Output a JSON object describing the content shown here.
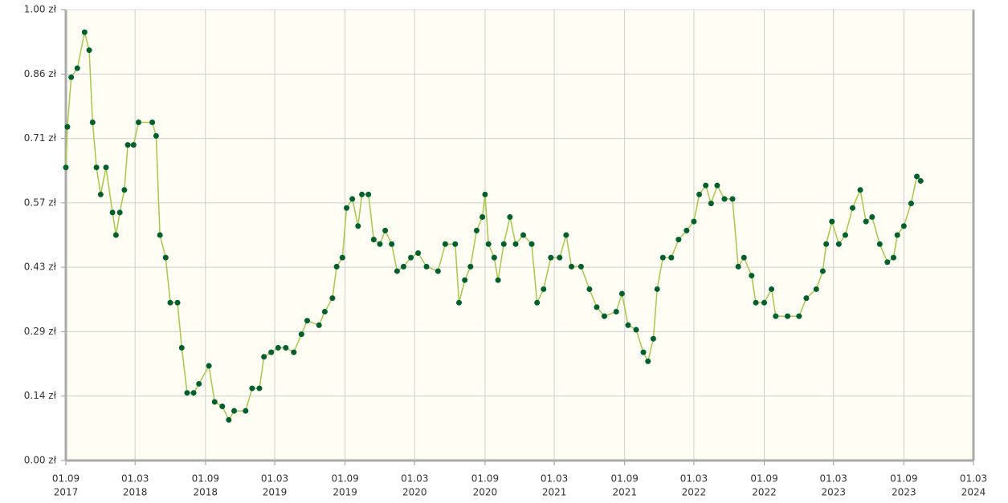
{
  "chart_data": {
    "type": "line",
    "x": [
      "2017-09-01",
      "2017-09-05",
      "2017-09-15",
      "2017-10-01",
      "2017-10-20",
      "2017-11-01",
      "2017-11-10",
      "2017-11-20",
      "2017-12-01",
      "2017-12-15",
      "2018-01-01",
      "2018-01-10",
      "2018-01-20",
      "2018-02-01",
      "2018-02-10",
      "2018-02-25",
      "2018-03-10",
      "2018-04-15",
      "2018-04-25",
      "2018-05-05",
      "2018-05-20",
      "2018-06-01",
      "2018-06-20",
      "2018-07-01",
      "2018-07-15",
      "2018-08-01",
      "2018-08-15",
      "2018-09-10",
      "2018-09-25",
      "2018-10-15",
      "2018-11-01",
      "2018-11-15",
      "2018-12-15",
      "2019-01-01",
      "2019-01-20",
      "2019-02-01",
      "2019-02-20",
      "2019-03-10",
      "2019-03-30",
      "2019-04-20",
      "2019-05-10",
      "2019-05-25",
      "2019-06-25",
      "2019-07-10",
      "2019-07-30",
      "2019-08-10",
      "2019-08-25",
      "2019-09-05",
      "2019-09-20",
      "2019-10-05",
      "2019-10-15",
      "2019-11-01",
      "2019-11-15",
      "2019-12-01",
      "2019-12-15",
      "2020-01-01",
      "2020-01-15",
      "2020-02-01",
      "2020-02-20",
      "2020-03-10",
      "2020-04-01",
      "2020-05-01",
      "2020-05-20",
      "2020-06-15",
      "2020-06-25",
      "2020-07-10",
      "2020-07-25",
      "2020-08-10",
      "2020-08-25",
      "2020-09-01",
      "2020-09-10",
      "2020-09-25",
      "2020-10-05",
      "2020-10-20",
      "2020-11-05",
      "2020-11-20",
      "2020-12-10",
      "2021-01-01",
      "2021-01-15",
      "2021-02-01",
      "2021-02-20",
      "2021-03-15",
      "2021-04-01",
      "2021-04-15",
      "2021-05-10",
      "2021-06-01",
      "2021-06-20",
      "2021-07-10",
      "2021-08-10",
      "2021-08-25",
      "2021-09-10",
      "2021-10-01",
      "2021-10-20",
      "2021-11-01",
      "2021-11-15",
      "2021-11-25",
      "2021-12-10",
      "2022-01-01",
      "2022-01-20",
      "2022-02-10",
      "2022-03-01",
      "2022-03-15",
      "2022-04-01",
      "2022-04-15",
      "2022-05-01",
      "2022-05-20",
      "2022-06-10",
      "2022-06-25",
      "2022-07-10",
      "2022-07-30",
      "2022-08-10",
      "2022-09-01",
      "2022-09-20",
      "2022-10-01",
      "2022-11-01",
      "2022-12-01",
      "2022-12-20",
      "2023-01-15",
      "2023-02-01",
      "2023-02-10",
      "2023-02-25",
      "2023-03-15",
      "2023-04-01",
      "2023-04-20",
      "2023-05-10",
      "2023-05-25",
      "2023-06-10",
      "2023-06-30",
      "2023-07-20",
      "2023-08-05",
      "2023-08-15",
      "2023-09-01",
      "2023-09-20",
      "2023-10-05",
      "2023-10-15"
    ],
    "values": [
      0.65,
      0.74,
      0.85,
      0.87,
      0.95,
      0.91,
      0.75,
      0.65,
      0.59,
      0.65,
      0.55,
      0.5,
      0.55,
      0.6,
      0.7,
      0.7,
      0.75,
      0.75,
      0.72,
      0.5,
      0.45,
      0.35,
      0.35,
      0.25,
      0.15,
      0.15,
      0.17,
      0.21,
      0.13,
      0.12,
      0.09,
      0.11,
      0.11,
      0.16,
      0.16,
      0.23,
      0.24,
      0.25,
      0.25,
      0.24,
      0.28,
      0.31,
      0.3,
      0.33,
      0.36,
      0.43,
      0.45,
      0.56,
      0.58,
      0.52,
      0.59,
      0.59,
      0.49,
      0.48,
      0.51,
      0.48,
      0.42,
      0.43,
      0.45,
      0.46,
      0.43,
      0.42,
      0.48,
      0.48,
      0.35,
      0.4,
      0.43,
      0.51,
      0.54,
      0.59,
      0.48,
      0.45,
      0.4,
      0.48,
      0.54,
      0.48,
      0.5,
      0.48,
      0.35,
      0.38,
      0.45,
      0.45,
      0.5,
      0.43,
      0.43,
      0.38,
      0.34,
      0.32,
      0.33,
      0.37,
      0.3,
      0.29,
      0.24,
      0.22,
      0.27,
      0.38,
      0.45,
      0.45,
      0.49,
      0.51,
      0.53,
      0.59,
      0.61,
      0.57,
      0.61,
      0.58,
      0.58,
      0.43,
      0.45,
      0.41,
      0.35,
      0.35,
      0.38,
      0.32,
      0.32,
      0.32,
      0.36,
      0.38,
      0.42,
      0.48,
      0.53,
      0.48,
      0.5,
      0.56,
      0.6,
      0.53,
      0.54,
      0.48,
      0.44,
      0.45,
      0.5,
      0.52,
      0.57,
      0.63,
      0.62
    ],
    "line_color": "#a8c84a",
    "marker_color": "#00602e",
    "xlim": [
      "2017-09-01",
      "2024-03-01"
    ],
    "xticks": [
      {
        "value": "2017-09-01",
        "label": [
          "01.09",
          "2017"
        ]
      },
      {
        "value": "2018-03-01",
        "label": [
          "01.03",
          "2018"
        ]
      },
      {
        "value": "2018-09-01",
        "label": [
          "01.09",
          "2018"
        ]
      },
      {
        "value": "2019-03-01",
        "label": [
          "01.03",
          "2019"
        ]
      },
      {
        "value": "2019-09-01",
        "label": [
          "01.09",
          "2019"
        ]
      },
      {
        "value": "2020-03-01",
        "label": [
          "01.03",
          "2020"
        ]
      },
      {
        "value": "2020-09-01",
        "label": [
          "01.09",
          "2020"
        ]
      },
      {
        "value": "2021-03-01",
        "label": [
          "01.03",
          "2021"
        ]
      },
      {
        "value": "2021-09-01",
        "label": [
          "01.09",
          "2021"
        ]
      },
      {
        "value": "2022-03-01",
        "label": [
          "01.03",
          "2022"
        ]
      },
      {
        "value": "2022-09-01",
        "label": [
          "01.09",
          "2022"
        ]
      },
      {
        "value": "2023-03-01",
        "label": [
          "01.03",
          "2023"
        ]
      },
      {
        "value": "2023-09-01",
        "label": [
          "01.09",
          "2023"
        ]
      },
      {
        "value": "2024-03-01",
        "label": [
          "01.03",
          "2024"
        ]
      }
    ],
    "ylim": [
      0,
      1
    ],
    "yticks": [
      {
        "value": 0,
        "label": "0.00 zł"
      },
      {
        "value": 0.1429,
        "label": "0.14 zł"
      },
      {
        "value": 0.2857,
        "label": "0.29 zł"
      },
      {
        "value": 0.4286,
        "label": "0.43 zł"
      },
      {
        "value": 0.5714,
        "label": "0.57 zł"
      },
      {
        "value": 0.7143,
        "label": "0.71 zł"
      },
      {
        "value": 0.8571,
        "label": "0.86 zł"
      },
      {
        "value": 1,
        "label": "1.00 zł"
      }
    ],
    "grid": true
  }
}
